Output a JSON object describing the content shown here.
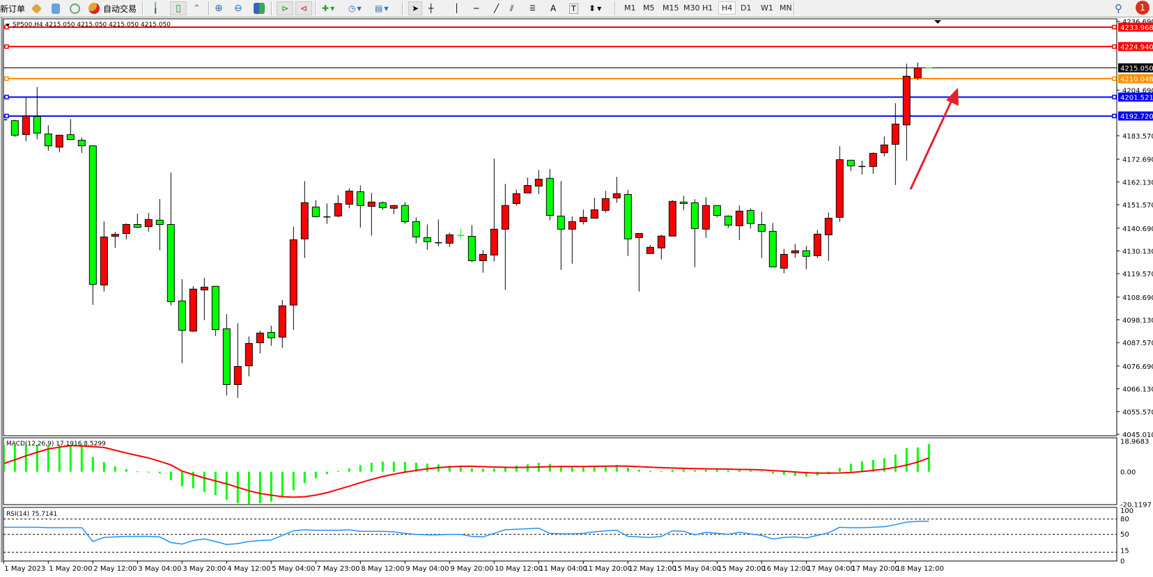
{
  "toolbar": {
    "new_order": "新订单",
    "auto_trading": "自动交易",
    "timeframes": [
      "M1",
      "M5",
      "M15",
      "M30",
      "H1",
      "H4",
      "D1",
      "W1",
      "MN"
    ],
    "active_timeframe": "H4",
    "notification_count": "1",
    "icons": [
      "navigator-icon",
      "market-watch-icon",
      "signals-icon",
      "auto-trading-icon",
      "bar-chart-icon",
      "candlestick-icon",
      "line-chart-icon",
      "zoom-in-icon",
      "zoom-out-icon",
      "tile-windows-icon",
      "chart-shift-icon",
      "autoscroll-icon",
      "indicators-icon",
      "periods-icon",
      "templates-icon",
      "cursor-icon",
      "crosshair-icon",
      "vertical-line-icon",
      "horizontal-line-icon",
      "trendline-icon",
      "fibo-channel-icon",
      "fibo-retracement-icon",
      "text-icon",
      "text-label-icon",
      "arrows-icon",
      "search-icon",
      "notification-icon"
    ]
  },
  "chart": {
    "title": "SP500,H4  4215.050 4215.050 4215.050 4215.050",
    "macd_label": "MACD(12,26,9) 17.1916 8.5299",
    "rsi_label": "RSI(14) 75.7141",
    "colors": {
      "bull": "#ff0000",
      "bear": "#00ff00",
      "signal": "#ff0000",
      "histogram": "#00ff00",
      "rsi": "#1e90ff",
      "arrow": "#e8202a"
    },
    "price_ticks": [
      "4236.690",
      "4204.690",
      "4183.570",
      "4172.690",
      "4162.130",
      "4151.570",
      "4140.690",
      "4130.130",
      "4119.570",
      "4108.690",
      "4098.130",
      "4087.570",
      "4076.690",
      "4066.130",
      "4055.570",
      "4045.010"
    ],
    "levels": [
      {
        "price": "4233.968",
        "color": "#ff0000"
      },
      {
        "price": "4224.940",
        "color": "#ff0000"
      },
      {
        "price": "4215.050",
        "color": "#000000"
      },
      {
        "price": "4210.048",
        "color": "#ff8c00"
      },
      {
        "price": "4201.521",
        "color": "#0000ff"
      },
      {
        "price": "4192.720",
        "color": "#0000ff"
      }
    ],
    "macd_scale": [
      "18.9683",
      "0.00",
      "-20.1197"
    ],
    "rsi_scale": [
      "100",
      "80",
      "50",
      "15",
      "0"
    ],
    "rsi_levels": [
      80,
      50,
      15
    ],
    "time_labels": [
      "1 May 2023",
      "1 May 20:00",
      "2 May 12:00",
      "3 May 04:00",
      "3 May 20:00",
      "4 May 12:00",
      "5 May 04:00",
      "7 May 23:00",
      "8 May 12:00",
      "9 May 04:00",
      "9 May 20:00",
      "10 May 12:00",
      "11 May 04:00",
      "11 May 20:00",
      "12 May 12:00",
      "15 May 04:00",
      "15 May 20:00",
      "16 May 12:00",
      "17 May 04:00",
      "17 May 20:00",
      "18 May 12:00"
    ]
  },
  "chart_data": {
    "type": "candlestick",
    "symbol": "SP500",
    "timeframe": "H4",
    "ylim": [
      4045.01,
      4236.69
    ],
    "ohlc": [
      [
        4191.0,
        4194.0,
        4187.6,
        4191.0
      ],
      [
        4190.6,
        4191.0,
        4183.0,
        4183.8
      ],
      [
        4184.1,
        4201.3,
        4181.1,
        4192.7
      ],
      [
        4192.5,
        4206.2,
        4182.0,
        4184.8
      ],
      [
        4184.4,
        4188.4,
        4176.6,
        4178.9
      ],
      [
        4178.3,
        4183.8,
        4175.9,
        4183.8
      ],
      [
        4184.1,
        4191.3,
        4181.4,
        4181.8
      ],
      [
        4181.5,
        4182.8,
        4175.6,
        4178.9
      ],
      [
        4178.9,
        4178.9,
        4105.1,
        4114.6
      ],
      [
        4114.3,
        4143.8,
        4111.3,
        4136.6
      ],
      [
        4136.9,
        4139.0,
        4131.6,
        4137.8
      ],
      [
        4138.2,
        4142.9,
        4135.5,
        4142.4
      ],
      [
        4142.4,
        4147.4,
        4140.7,
        4141.1
      ],
      [
        4141.4,
        4147.7,
        4139.1,
        4144.7
      ],
      [
        4144.4,
        4154.2,
        4130.4,
        4142.4
      ],
      [
        4142.4,
        4166.4,
        4104.8,
        4106.6
      ],
      [
        4106.9,
        4117.0,
        4078.0,
        4093.3
      ],
      [
        4092.9,
        4113.8,
        4092.6,
        4112.4
      ],
      [
        4112.0,
        4117.6,
        4098.0,
        4113.3
      ],
      [
        4113.7,
        4113.7,
        4090.6,
        4093.6
      ],
      [
        4094.0,
        4100.8,
        4063.1,
        4068.1
      ],
      [
        4068.1,
        4096.6,
        4061.9,
        4076.5
      ],
      [
        4076.8,
        4090.4,
        4071.9,
        4087.2
      ],
      [
        4087.5,
        4093.1,
        4082.5,
        4092.0
      ],
      [
        4092.3,
        4095.4,
        4086.1,
        4089.8
      ],
      [
        4090.1,
        4107.3,
        4085.1,
        4104.6
      ],
      [
        4105.0,
        4141.3,
        4093.5,
        4135.3
      ],
      [
        4135.7,
        4162.5,
        4126.8,
        4152.5
      ],
      [
        4150.5,
        4153.7,
        4145.7,
        4146.0
      ],
      [
        4145.9,
        4152.1,
        4142.7,
        4145.9
      ],
      [
        4146.3,
        4156.0,
        4145.7,
        4152.1
      ],
      [
        4151.8,
        4159.2,
        4149.9,
        4157.9
      ],
      [
        4157.6,
        4160.5,
        4141.0,
        4151.2
      ],
      [
        4150.8,
        4157.0,
        4137.2,
        4152.8
      ],
      [
        4152.5,
        4153.1,
        4149.1,
        4150.2
      ],
      [
        4149.9,
        4151.5,
        4147.2,
        4151.2
      ],
      [
        4151.2,
        4152.8,
        4142.7,
        4143.7
      ],
      [
        4143.7,
        4145.7,
        4133.6,
        4136.6
      ],
      [
        4136.3,
        4142.4,
        4130.7,
        4134.4
      ],
      [
        4133.9,
        4144.7,
        4132.3,
        4133.9
      ],
      [
        4133.7,
        4138.6,
        4132.0,
        4137.6
      ],
      [
        4137.3,
        4140.5,
        4135.9,
        4137.3
      ],
      [
        4136.9,
        4142.1,
        4124.9,
        4125.6
      ],
      [
        4125.6,
        4130.5,
        4120.0,
        4128.5
      ],
      [
        4128.2,
        4172.9,
        4125.2,
        4140.2
      ],
      [
        4140.2,
        4161.2,
        4112.0,
        4151.2
      ],
      [
        4152.1,
        4158.6,
        4151.1,
        4156.7
      ],
      [
        4157.0,
        4164.2,
        4157.0,
        4160.5
      ],
      [
        4160.2,
        4167.7,
        4156.5,
        4163.4
      ],
      [
        4163.8,
        4168.1,
        4144.3,
        4146.6
      ],
      [
        4146.3,
        4162.5,
        4121.3,
        4140.2
      ],
      [
        4140.2,
        4146.1,
        4124.2,
        4143.7
      ],
      [
        4143.7,
        4149.3,
        4142.4,
        4145.7
      ],
      [
        4145.3,
        4154.8,
        4145.3,
        4149.2
      ],
      [
        4148.9,
        4158.0,
        4147.9,
        4154.4
      ],
      [
        4154.7,
        4164.5,
        4152.5,
        4156.7
      ],
      [
        4156.3,
        4158.4,
        4127.8,
        4135.7
      ],
      [
        4136.3,
        4138.2,
        4111.3,
        4138.2
      ],
      [
        4128.9,
        4132.9,
        4128.9,
        4131.8
      ],
      [
        4131.5,
        4137.6,
        4126.2,
        4137.0
      ],
      [
        4137.0,
        4153.7,
        4137.0,
        4153.1
      ],
      [
        4152.8,
        4155.7,
        4149.1,
        4152.1
      ],
      [
        4152.5,
        4154.1,
        4122.6,
        4140.5
      ],
      [
        4140.2,
        4155.0,
        4136.2,
        4151.2
      ],
      [
        4151.2,
        4151.2,
        4145.7,
        4146.6
      ],
      [
        4146.3,
        4146.6,
        4140.8,
        4142.1
      ],
      [
        4141.8,
        4151.2,
        4135.2,
        4148.6
      ],
      [
        4148.9,
        4149.9,
        4140.5,
        4142.8
      ],
      [
        4142.4,
        4148.3,
        4126.8,
        4139.2
      ],
      [
        4139.2,
        4143.1,
        4122.7,
        4122.7
      ],
      [
        4122.1,
        4131.1,
        4119.7,
        4128.5
      ],
      [
        4129.2,
        4133.4,
        4126.9,
        4130.2
      ],
      [
        4130.2,
        4132.4,
        4121.7,
        4127.6
      ],
      [
        4127.9,
        4139.9,
        4126.8,
        4137.9
      ],
      [
        4137.6,
        4147.9,
        4125.5,
        4145.3
      ],
      [
        4145.7,
        4178.7,
        4143.6,
        4172.5
      ],
      [
        4172.2,
        4172.2,
        4167.2,
        4169.6
      ],
      [
        4169.3,
        4172.0,
        4165.6,
        4169.3
      ],
      [
        4169.3,
        4175.8,
        4165.9,
        4175.4
      ],
      [
        4175.7,
        4183.2,
        4174.0,
        4179.3
      ],
      [
        4179.6,
        4198.7,
        4160.7,
        4189.0
      ],
      [
        4188.6,
        4217.0,
        4172.0,
        4211.2
      ],
      [
        4210.5,
        4217.5,
        4209.5,
        4215.05
      ],
      [
        4215.05,
        4215.05,
        4215.05,
        4215.05
      ]
    ],
    "macd_histogram": [
      16.6,
      16.6,
      16.6,
      16.6,
      16.6,
      16.6,
      16.6,
      16.6,
      9.1,
      5.9,
      3.3,
      1.6,
      0.2,
      -0.5,
      -1.0,
      -5.3,
      -8.9,
      -10.3,
      -12.5,
      -14.5,
      -17.5,
      -19.5,
      -20.0,
      -19.5,
      -18.5,
      -15.5,
      -11.5,
      -7.0,
      -4.0,
      -1.5,
      0.5,
      2.0,
      4.0,
      5.5,
      6.2,
      6.2,
      6.0,
      5.5,
      5.0,
      4.5,
      3.8,
      3.2,
      2.2,
      1.8,
      2.0,
      3.0,
      3.8,
      4.6,
      5.5,
      4.8,
      3.6,
      3.0,
      3.0,
      3.2,
      3.8,
      4.2,
      2.5,
      1.2,
      0.6,
      0.4,
      1.2,
      1.5,
      1.0,
      1.2,
      1.2,
      0.9,
      1.0,
      0.8,
      0.3,
      -1.2,
      -2.0,
      -2.6,
      -3.0,
      -2.4,
      -1.5,
      2.4,
      4.9,
      6.3,
      7.3,
      8.3,
      10.7,
      14.6,
      15.0,
      17.19
    ],
    "macd_signal": [
      5.0,
      7.4,
      9.8,
      12.0,
      14.1,
      15.2,
      16.2,
      15.9,
      15.5,
      15.0,
      13.3,
      11.6,
      10.0,
      8.5,
      6.4,
      4.2,
      0.4,
      -1.8,
      -3.9,
      -5.7,
      -7.5,
      -9.7,
      -11.8,
      -13.5,
      -14.5,
      -15.5,
      -15.8,
      -15.5,
      -14.5,
      -13.0,
      -11.0,
      -9.0,
      -6.8,
      -4.8,
      -3.0,
      -1.5,
      -0.3,
      0.8,
      1.8,
      2.5,
      3.0,
      3.3,
      3.3,
      3.1,
      2.9,
      2.7,
      2.6,
      2.7,
      2.9,
      3.1,
      3.2,
      3.2,
      3.2,
      3.3,
      3.4,
      3.5,
      3.4,
      3.1,
      2.8,
      2.5,
      2.3,
      2.1,
      1.9,
      1.8,
      1.7,
      1.6,
      1.4,
      1.3,
      1.1,
      0.7,
      0.3,
      -0.2,
      -0.6,
      -0.9,
      -0.9,
      -0.8,
      -0.5,
      0.1,
      0.8,
      1.6,
      2.7,
      4.1,
      6.0,
      8.53
    ],
    "macd_ylim": [
      -20.1197,
      18.9683
    ],
    "rsi": [
      64,
      64,
      64,
      64,
      63,
      63,
      63,
      63,
      36,
      44,
      45,
      46,
      46,
      46,
      45,
      34,
      31,
      38,
      41,
      36,
      30,
      32,
      36,
      38,
      39,
      48,
      57,
      59,
      58,
      58,
      58,
      59,
      56,
      56,
      56,
      55,
      52,
      50,
      49,
      49,
      50,
      50,
      46,
      45,
      52,
      59,
      60,
      61,
      62,
      52,
      51,
      51,
      52,
      55,
      57,
      58,
      46,
      45,
      44,
      46,
      57,
      56,
      49,
      54,
      52,
      50,
      54,
      51,
      48,
      41,
      44,
      45,
      43,
      48,
      53,
      64,
      63,
      63,
      64,
      65,
      69,
      74,
      75.5,
      75.71
    ],
    "rsi_ylim": [
      0,
      100
    ]
  }
}
